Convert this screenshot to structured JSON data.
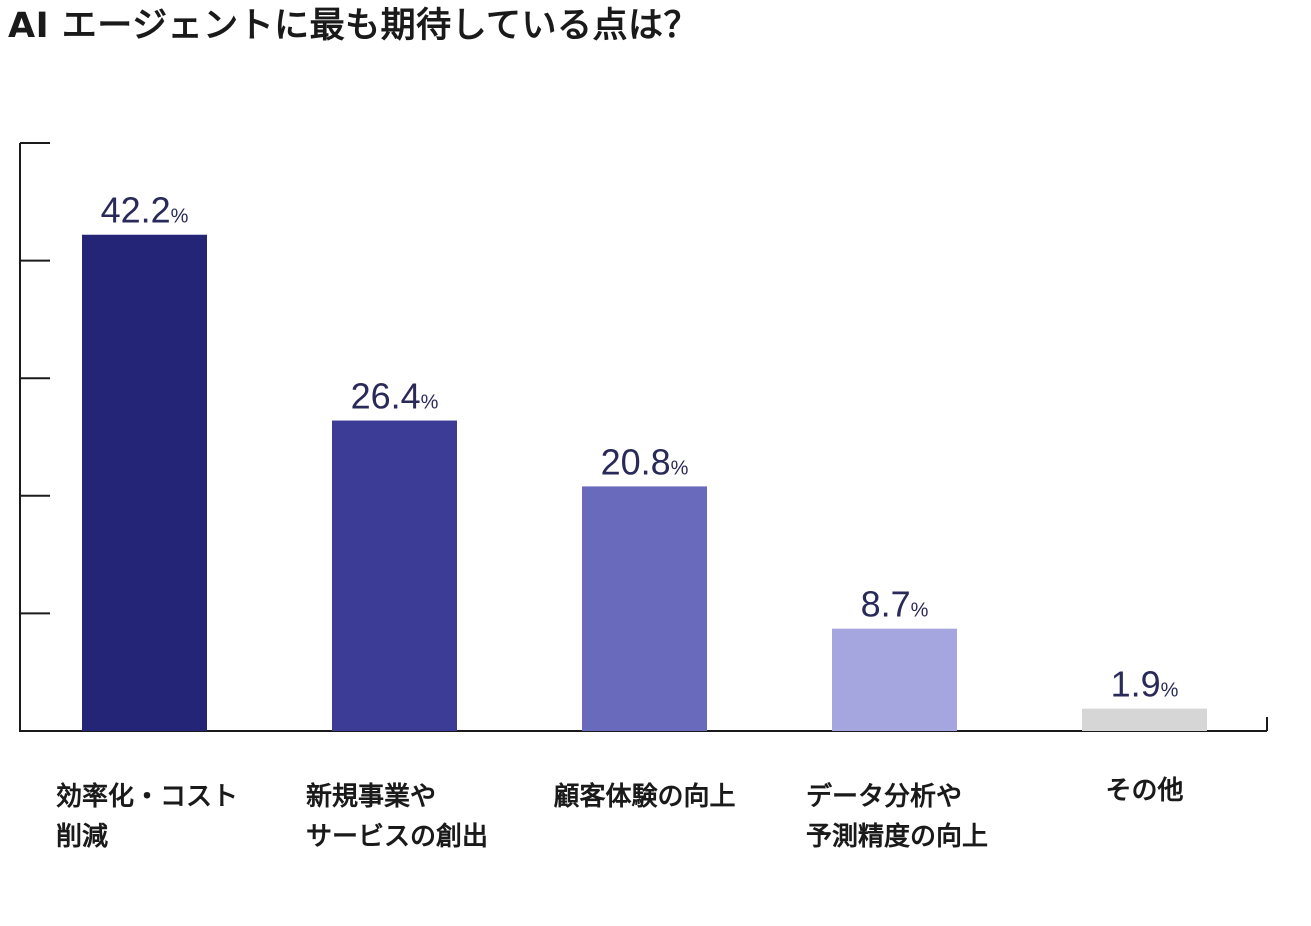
{
  "title": "AI エージェントに最も期待している点は？",
  "chart_data": {
    "type": "bar",
    "title": "AI エージェントに最も期待している点は？",
    "categories": [
      [
        "効率化・コスト",
        "削減"
      ],
      [
        "新規事業や",
        "サービスの創出"
      ],
      [
        "顧客体験の向上"
      ],
      [
        "データ分析や",
        "予測精度の向上"
      ],
      [
        "その他"
      ]
    ],
    "values": [
      42.2,
      26.4,
      20.8,
      8.7,
      1.9
    ],
    "value_labels": [
      "42.2",
      "26.4",
      "20.8",
      "8.7",
      "1.9"
    ],
    "value_unit": "%",
    "colors": [
      "#252577",
      "#3c3c96",
      "#6a6abd",
      "#a5a5df",
      "#d6d6d6"
    ],
    "label_color": "#2a2a5a",
    "axis_color": "#1a1a1a",
    "ylim": [
      0,
      50
    ],
    "ytick_count": 6,
    "ytick_labels_shown": false,
    "grid": false,
    "legend": "none"
  }
}
